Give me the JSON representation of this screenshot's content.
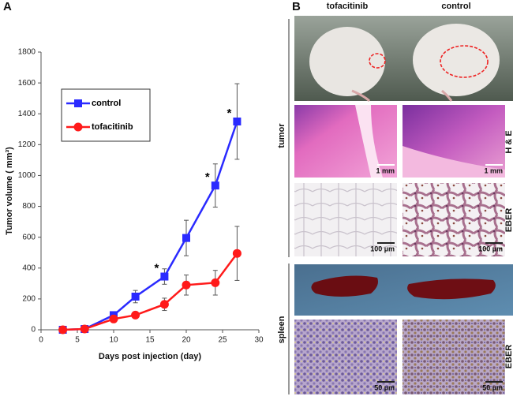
{
  "chart_data": {
    "type": "line",
    "xlabel": "Days post injection (day)",
    "ylabel": "Tumor volume ( mm³)",
    "x": [
      3,
      6,
      10,
      13,
      17,
      20,
      24,
      27
    ],
    "series": [
      {
        "name": "control",
        "color": "#2a2aff",
        "marker": "square",
        "values": [
          0,
          5,
          95,
          215,
          345,
          595,
          935,
          1350
        ],
        "errors": [
          0,
          0,
          15,
          40,
          50,
          115,
          140,
          245
        ]
      },
      {
        "name": "tofacitinib",
        "color": "#ff1a1a",
        "marker": "circle",
        "values": [
          0,
          5,
          70,
          95,
          165,
          290,
          305,
          495
        ],
        "errors": [
          0,
          0,
          10,
          15,
          40,
          65,
          80,
          175
        ]
      }
    ],
    "annotations": [
      {
        "text": "*",
        "x": 17
      },
      {
        "text": "*",
        "x": 24
      },
      {
        "text": "*",
        "x": 27
      }
    ],
    "xlim": [
      0,
      30
    ],
    "xticks": [
      0,
      5,
      10,
      15,
      20,
      25,
      30
    ],
    "ylim": [
      0,
      1800
    ],
    "yticks": [
      0,
      200,
      400,
      600,
      800,
      1000,
      1200,
      1400,
      1600,
      1800
    ],
    "legend": "upper left",
    "grid": false
  },
  "panel_labels": [
    "A",
    "B"
  ],
  "figure_b": {
    "columns": [
      "tofacitinib",
      "control"
    ],
    "rows": [
      {
        "label": "tumor",
        "stains": [
          "H & E",
          "EBER"
        ]
      },
      {
        "label": "spleen",
        "stains": [
          "EBER"
        ]
      }
    ],
    "scale_bars": [
      [
        "1 mm",
        "1 mm"
      ],
      [
        "100 µm",
        "100 µm"
      ],
      [
        "50 µm",
        "50 µm"
      ]
    ]
  }
}
